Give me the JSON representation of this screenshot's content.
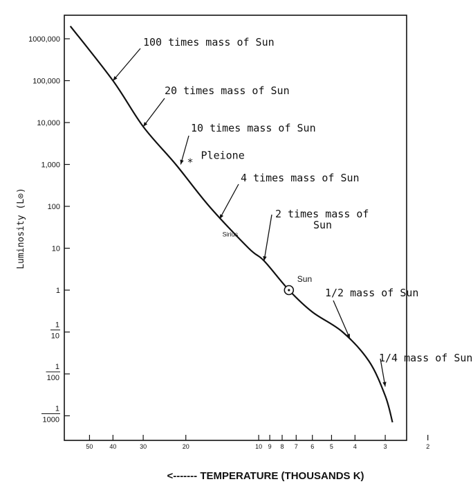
{
  "chart_data": {
    "type": "line",
    "title": "",
    "xlabel": "<------- TEMPERATURE   (THOUSANDS K)",
    "ylabel": "Luminosity (L⊙)",
    "x_scale": "log",
    "y_scale": "log",
    "x_reversed": true,
    "x_tick_labels": [
      "50",
      "40",
      "30",
      "20",
      "10",
      "9",
      "8",
      "7",
      "6",
      "5",
      "4",
      "3",
      "2"
    ],
    "x_tick_values": [
      50,
      40,
      30,
      20,
      10,
      9,
      8,
      7,
      6,
      5,
      4,
      3,
      2
    ],
    "y_tick_labels": [
      "1000,000",
      "100,000",
      "10,000",
      "1,000",
      "100",
      "10",
      "1",
      "1/10",
      "1/100",
      "1/1000"
    ],
    "y_tick_values": [
      1000000,
      100000,
      10000,
      1000,
      100,
      10,
      1,
      0.1,
      0.01,
      0.001
    ],
    "series": [
      {
        "points": [
          {
            "t": 60,
            "l": 2000000
          },
          {
            "t": 40,
            "l": 100000
          },
          {
            "t": 30,
            "l": 8000
          },
          {
            "t": 22,
            "l": 1000
          },
          {
            "t": 16,
            "l": 100
          },
          {
            "t": 11,
            "l": 10
          },
          {
            "t": 9.5,
            "l": 5
          },
          {
            "t": 7.5,
            "l": 1
          },
          {
            "t": 6,
            "l": 0.3
          },
          {
            "t": 4.5,
            "l": 0.1
          },
          {
            "t": 3.5,
            "l": 0.02
          },
          {
            "t": 3,
            "l": 0.003
          },
          {
            "t": 2.8,
            "l": 0.0007
          }
        ]
      }
    ],
    "annotations": [
      {
        "label": "100 times mass of Sun",
        "t": 40,
        "l": 100000
      },
      {
        "label": "20 times mass of Sun",
        "t": 30,
        "l": 8000
      },
      {
        "label": "10 times mass of Sun",
        "t": 21,
        "l": 1000
      },
      {
        "label": "4 times mass of Sun",
        "t": 14.5,
        "l": 50
      },
      {
        "label": "2 times mass of Sun",
        "t": 9.5,
        "l": 5
      },
      {
        "label": "1/2 mass of Sun",
        "t": 4.2,
        "l": 0.07
      },
      {
        "label": "1/4 mass of Sun",
        "t": 3,
        "l": 0.005
      }
    ],
    "stars": [
      {
        "label": "Pleione",
        "t": 19,
        "l": 1000
      },
      {
        "label": "Sirius",
        "t": 11,
        "l": 20
      },
      {
        "label": "Sun",
        "t": 7.5,
        "l": 1
      }
    ],
    "grid": false,
    "legend": "none"
  }
}
